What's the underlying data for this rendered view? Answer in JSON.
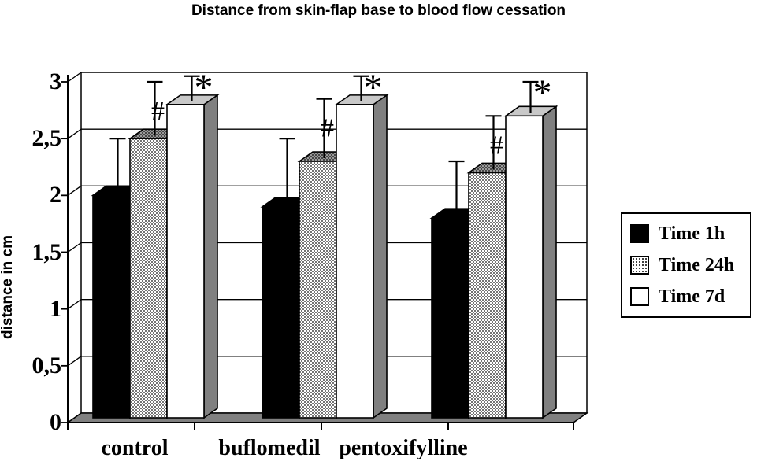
{
  "title": "Distance from skin-flap base to blood flow cessation",
  "chart_data": {
    "type": "bar",
    "subtype": "3d-clustered-column-with-error-bars",
    "title": "Distance from skin-flap base to blood flow cessation",
    "xlabel": "",
    "ylabel": "distance in cm",
    "ylim": [
      0,
      3
    ],
    "ytick_step": 0.5,
    "ytick_labels": [
      "0",
      "0,5",
      "1",
      "1,5",
      "2",
      "2,5",
      "3"
    ],
    "categories": [
      "control",
      "buflomedil",
      "pentoxifylline"
    ],
    "series": [
      {
        "name": "Time 1h",
        "style": "solid_black",
        "values": [
          2.0,
          1.9,
          1.8
        ],
        "errors_plus": [
          0.5,
          0.6,
          0.5
        ],
        "annotation": ""
      },
      {
        "name": "Time 24h",
        "style": "dotted",
        "values": [
          2.5,
          2.3,
          2.2
        ],
        "errors_plus": [
          0.5,
          0.55,
          0.5
        ],
        "annotation": "#"
      },
      {
        "name": "Time 7d",
        "style": "white",
        "values": [
          2.8,
          2.8,
          2.7
        ],
        "errors_plus": [
          0.25,
          0.25,
          0.3
        ],
        "annotation": "*"
      }
    ],
    "legend_position": "right",
    "grid": "horizontal-on-back-wall",
    "decimal_separator": ","
  },
  "colors": {
    "ink": "#000000",
    "background": "#ffffff",
    "bar_black": "#000000",
    "bar_white": "#ffffff",
    "bar_side_gray": "#808080",
    "bar_top_light": "#c8c8c8",
    "dotted_top_gray": "#9a9a9a",
    "floor_gray": "#808080"
  }
}
